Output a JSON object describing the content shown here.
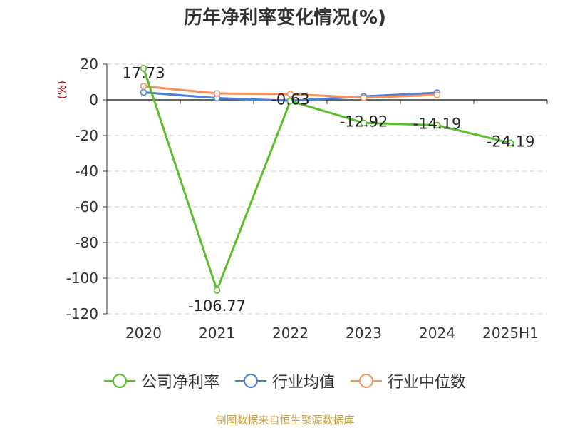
{
  "title": "历年净利率变化情况(%)",
  "source": "制图数据来自恒生聚源数据库",
  "colors": {
    "company": "#5bbf2a",
    "industry_avg": "#4a7fdc",
    "industry_median": "#f5915a",
    "axis": "#333333",
    "grid": "#cccccc",
    "unit": "#cc0000"
  },
  "chart_data": {
    "type": "line",
    "title": "历年净利率变化情况(%)",
    "ylabel": "(%)",
    "xlabel": "",
    "categories": [
      "2020",
      "2021",
      "2022",
      "2023",
      "2024",
      "2025H1"
    ],
    "ylim": [
      -120,
      20
    ],
    "yticks": [
      20,
      0,
      -20,
      -40,
      -60,
      -80,
      -100,
      -120
    ],
    "grid": "horizontal dashed",
    "legend_position": "bottom",
    "series": [
      {
        "name": "公司净利率",
        "color": "#5bbf2a",
        "values": [
          17.73,
          -106.77,
          -0.63,
          -12.92,
          -14.19,
          -24.19
        ],
        "labels": [
          "17.73",
          "-106.77",
          "-0.63",
          "-12.92",
          "-14.19",
          "-24.19"
        ]
      },
      {
        "name": "行业均值",
        "color": "#4a7fdc",
        "values": [
          4.2,
          1.0,
          -0.5,
          1.9,
          4.0,
          null
        ]
      },
      {
        "name": "行业中位数",
        "color": "#f5915a",
        "values": [
          7.6,
          3.6,
          3.2,
          1.2,
          2.8,
          null
        ]
      }
    ]
  }
}
